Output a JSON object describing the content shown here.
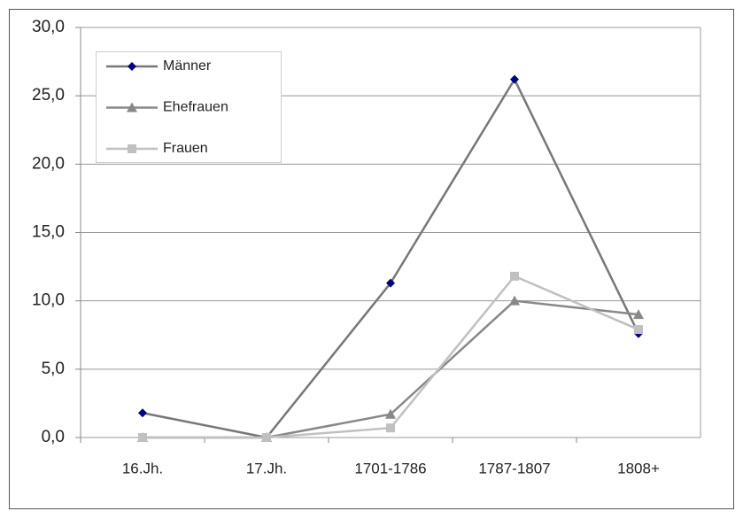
{
  "chart_data": {
    "type": "line",
    "categories": [
      "16.Jh.",
      "17.Jh.",
      "1701-1786",
      "1787-1807",
      "1808+"
    ],
    "series": [
      {
        "name": "Männer",
        "color": "#777777",
        "marker_color": "#000080",
        "marker": "diamond",
        "values": [
          1.8,
          0,
          11.3,
          26.2,
          7.6
        ]
      },
      {
        "name": "Ehefrauen",
        "color": "#888888",
        "marker_color": "#888888",
        "marker": "triangle",
        "values": [
          0,
          0,
          1.7,
          10.0,
          9.0
        ]
      },
      {
        "name": "Frauen",
        "color": "#c0c0c0",
        "marker_color": "#c0c0c0",
        "marker": "square",
        "values": [
          0,
          0,
          0.7,
          11.8,
          7.9
        ]
      }
    ],
    "ylim": [
      0,
      30
    ],
    "yticks": [
      {
        "value": 0,
        "label": "0,0"
      },
      {
        "value": 5,
        "label": "5,0"
      },
      {
        "value": 10,
        "label": "10,0"
      },
      {
        "value": 15,
        "label": "15,0"
      },
      {
        "value": 20,
        "label": "20,0"
      },
      {
        "value": 25,
        "label": "25,0"
      },
      {
        "value": 30,
        "label": "30,0"
      }
    ],
    "grid": true,
    "legend": "upper left"
  }
}
